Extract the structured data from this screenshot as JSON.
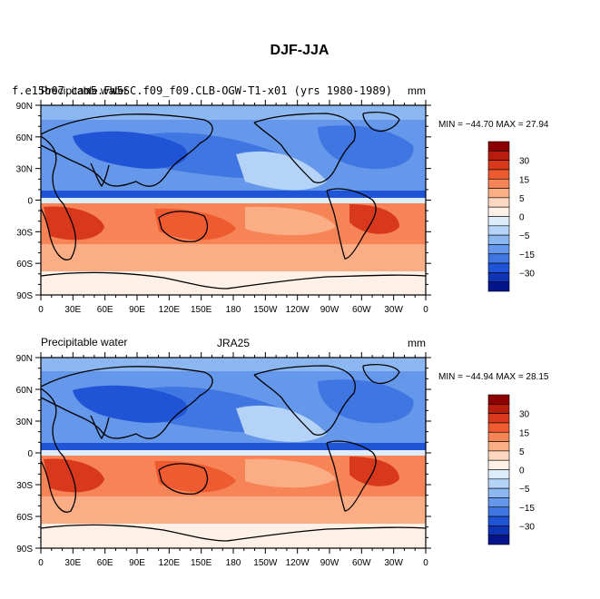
{
  "chart_data": {
    "type": "heatmap",
    "title": "DJF-JJA",
    "colorbar_labels": [
      "30",
      "15",
      "5",
      "0",
      "−5",
      "−15",
      "−30"
    ],
    "colorbar_colors": [
      "#8b0000",
      "#b81c0c",
      "#d8391c",
      "#ee5b30",
      "#f68456",
      "#fbae86",
      "#fdd7bf",
      "#fdf0e6",
      "#dcecfb",
      "#b5d3f7",
      "#8db7f1",
      "#6598ea",
      "#3f76e2",
      "#2054d6",
      "#0e33b4",
      "#04148a"
    ],
    "x_ticks": [
      "0",
      "30E",
      "60E",
      "90E",
      "120E",
      "150E",
      "180",
      "150W",
      "120W",
      "90W",
      "60W",
      "30W",
      "0"
    ],
    "y_ticks": [
      "90N",
      "60N",
      "30N",
      "0",
      "30S",
      "60S",
      "90S"
    ],
    "xlim": [
      0,
      360
    ],
    "ylim": [
      -90,
      90
    ],
    "panels": [
      {
        "left_label": "Precipitable water",
        "center_label": "f.e15b07.cam5.FW5SC.f09_f09.CLB-OGW-T1-x01 (yrs 1980-1989)",
        "units": "mm",
        "min_max": "MIN = −44.70  MAX =  27.94",
        "min": -44.7,
        "max": 27.94
      },
      {
        "left_label": "Precipitable water",
        "center_label": "JRA25",
        "units": "mm",
        "min_max": "MIN = −44.94  MAX =  28.15",
        "min": -44.94,
        "max": 28.15
      }
    ]
  }
}
